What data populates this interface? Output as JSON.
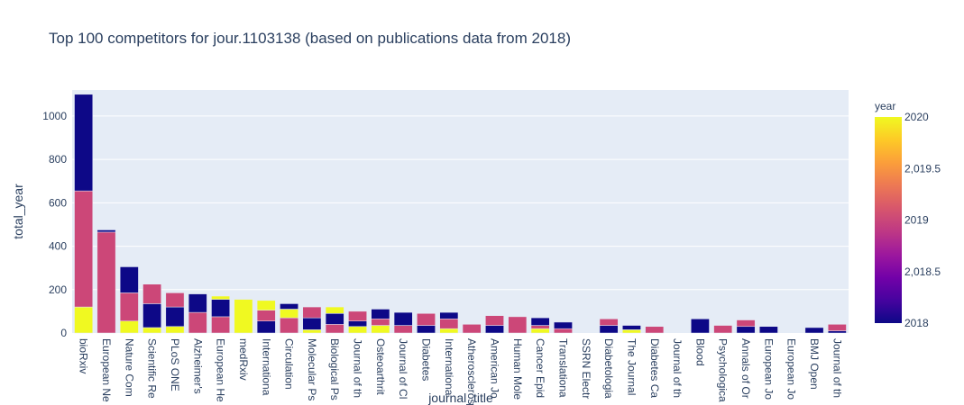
{
  "chart_data": {
    "type": "bar",
    "title": "Top 100 competitors for jour.1103138 (based on publications data from 2018)",
    "xlabel": "journal_title",
    "ylabel": "total_year",
    "ylim": [
      0,
      1120
    ],
    "y_ticks": [
      0,
      200,
      400,
      600,
      800,
      1000
    ],
    "y_tick_labels": [
      "0",
      "200",
      "400",
      "600",
      "800",
      "1000"
    ],
    "colorbar": {
      "title": "year",
      "ticks": [
        "2020",
        "2,019.5",
        "2019",
        "2,018.5",
        "2018"
      ],
      "colors": {
        "2018": "#0d0887",
        "2019": "#cc4778",
        "2020": "#f0f921"
      }
    },
    "grid": true,
    "barmode": "stack",
    "categories": [
      "bioRxiv",
      "European Ne",
      "Nature Com",
      "Scientific Re",
      "PLoS ONE",
      "Alzheimer's",
      "European He",
      "medRxiv",
      "Internationa",
      "Circulation",
      "Molecular Ps",
      "Biological Ps",
      "Journal of th",
      "Osteoarthrit",
      "Journal of Cl",
      "Diabetes",
      "Internationa",
      "Atheroscleros",
      "American Jo",
      "Human Mole",
      "Cancer Epid",
      "Translationa",
      "SSRN Electr",
      "Diabetologia",
      "The Journal",
      "Diabetes Ca",
      "Journal of th",
      "Blood",
      "Psychologica",
      "Annals of Or",
      "European Jo",
      "European Jo",
      "BMJ Open",
      "Journal of th"
    ],
    "series": [
      {
        "name": "2020",
        "values": [
          120,
          0,
          55,
          25,
          30,
          0,
          0,
          155,
          0,
          0,
          15,
          0,
          30,
          35,
          0,
          0,
          20,
          0,
          0,
          0,
          20,
          0,
          0,
          0,
          15,
          0,
          0,
          0,
          0,
          0,
          0,
          0,
          0,
          0
        ]
      },
      {
        "name": "2019",
        "values": [
          535,
          465,
          130,
          0,
          0,
          95,
          75,
          0,
          0,
          0,
          0,
          40,
          0,
          30,
          35,
          0,
          0,
          40,
          0,
          0,
          15,
          20,
          0,
          0,
          0,
          30,
          0,
          0,
          35,
          0,
          0,
          0,
          0,
          0
        ]
      },
      {
        "name": "2018",
        "values": [
          0,
          0,
          0,
          0,
          90,
          0,
          80,
          0,
          55,
          0,
          0,
          0,
          0,
          0,
          0,
          35,
          0,
          0,
          35,
          0,
          0,
          30,
          0,
          35,
          0,
          0,
          0,
          65,
          0,
          30,
          0,
          0,
          25,
          10
        ]
      },
      {
        "name": "2019",
        "values": [
          0,
          0,
          0,
          0,
          65,
          0,
          0,
          0,
          50,
          70,
          0,
          0,
          0,
          0,
          0,
          55,
          45,
          0,
          0,
          0,
          0,
          0,
          0,
          30,
          0,
          0,
          0,
          0,
          0,
          0,
          0,
          0,
          0,
          0
        ]
      },
      {
        "name": "2020",
        "values": [
          0,
          0,
          0,
          0,
          0,
          0,
          0,
          0,
          45,
          40,
          0,
          0,
          0,
          0,
          0,
          0,
          0,
          0,
          0,
          0,
          0,
          0,
          0,
          0,
          0,
          0,
          0,
          0,
          0,
          0,
          0,
          0,
          0,
          0
        ]
      },
      {
        "name": "2018",
        "values": [
          445,
          10,
          120,
          110,
          0,
          85,
          0,
          0,
          0,
          25,
          55,
          50,
          25,
          45,
          60,
          0,
          30,
          0,
          0,
          0,
          35,
          0,
          0,
          0,
          20,
          0,
          0,
          0,
          0,
          0,
          30,
          0,
          0,
          0
        ]
      },
      {
        "name": "2019",
        "values": [
          0,
          0,
          0,
          90,
          0,
          0,
          0,
          0,
          0,
          0,
          50,
          0,
          45,
          0,
          0,
          0,
          0,
          0,
          45,
          75,
          0,
          0,
          0,
          0,
          0,
          0,
          0,
          0,
          0,
          30,
          0,
          0,
          0,
          30
        ]
      },
      {
        "name": "2020",
        "values": [
          0,
          0,
          0,
          0,
          0,
          0,
          15,
          0,
          0,
          0,
          0,
          30,
          0,
          0,
          0,
          0,
          0,
          0,
          0,
          0,
          0,
          0,
          0,
          0,
          0,
          0,
          0,
          0,
          0,
          0,
          0,
          0,
          0,
          0
        ]
      },
      {
        "name": "2018",
        "values": [
          0,
          0,
          0,
          0,
          0,
          0,
          0,
          0,
          0,
          0,
          0,
          0,
          0,
          0,
          0,
          0,
          0,
          0,
          0,
          0,
          0,
          0,
          0,
          0,
          0,
          0,
          0,
          0,
          0,
          0,
          0,
          0,
          0,
          0
        ]
      }
    ]
  }
}
